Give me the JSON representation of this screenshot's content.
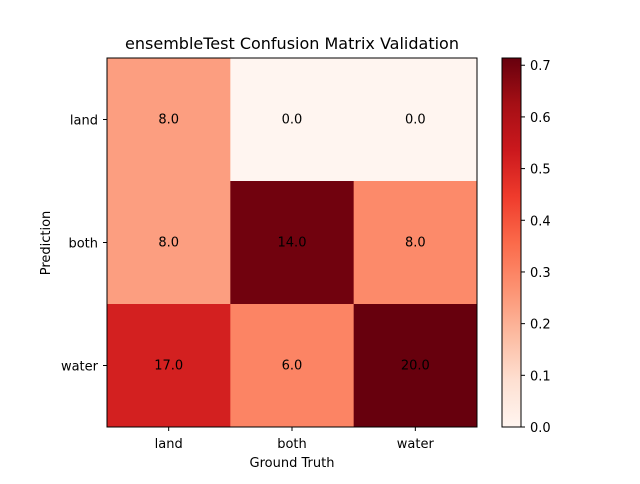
{
  "chart_data": {
    "type": "heatmap",
    "title": "ensembleTest Confusion Matrix Validation",
    "xlabel": "Ground Truth",
    "ylabel": "Prediction",
    "x_categories": [
      "land",
      "both",
      "water"
    ],
    "y_categories": [
      "land",
      "both",
      "water"
    ],
    "counts": [
      [
        8.0,
        0.0,
        0.0
      ],
      [
        8.0,
        14.0,
        8.0
      ],
      [
        17.0,
        6.0,
        20.0
      ]
    ],
    "cell_labels": [
      [
        "8.0",
        "0.0",
        "0.0"
      ],
      [
        "8.0",
        "14.0",
        "8.0"
      ],
      [
        "17.0",
        "6.0",
        "20.0"
      ]
    ],
    "normalized_values": [
      [
        0.242,
        0.0,
        0.0
      ],
      [
        0.242,
        0.7,
        0.286
      ],
      [
        0.515,
        0.3,
        0.714
      ]
    ],
    "colormap": "Reds",
    "colorbar": {
      "range": [
        0.0,
        0.714
      ],
      "ticks": [
        0.0,
        0.1,
        0.2,
        0.3,
        0.4,
        0.5,
        0.6,
        0.7
      ],
      "tick_labels": [
        "0.0",
        "0.1",
        "0.2",
        "0.3",
        "0.4",
        "0.5",
        "0.6",
        "0.7"
      ]
    },
    "colormap_stops": [
      "#fff5f0",
      "#fee0d2",
      "#fcbba1",
      "#fc9272",
      "#fb6a4a",
      "#ef3b2c",
      "#cb181d",
      "#a50f15",
      "#67000d"
    ],
    "text_color": "#000000"
  }
}
